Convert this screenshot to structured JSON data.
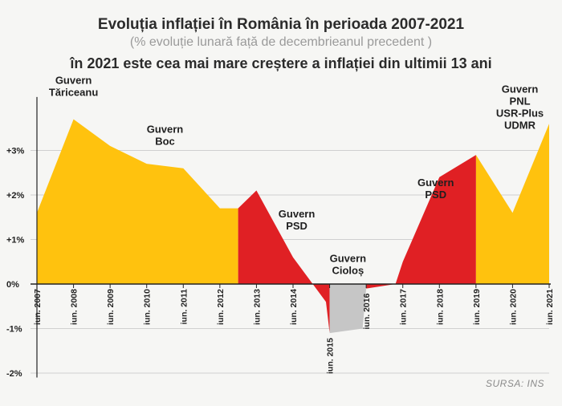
{
  "header": {
    "title": "Evoluția inflației în România în perioada 2007-2021",
    "subtitle": "(% evoluție lunară față de decembrieanul precedent )",
    "headline": "în 2021 este cea mai mare creștere a inflației din ultimii 13 ani"
  },
  "source": "SURSA: INS",
  "colors": {
    "yellow": "#ffc20e",
    "red": "#e02024",
    "gray": "#c6c6c6",
    "axis": "#222222",
    "grid": "#d0d0d0"
  },
  "chart_data": {
    "type": "area",
    "title": "Evoluția inflației în România în perioada 2007-2021",
    "xlabel": "",
    "ylabel": "",
    "ylim": [
      -2.1,
      4.2
    ],
    "y_ticks": [
      {
        "value": 3,
        "label": "+3%"
      },
      {
        "value": 2,
        "label": "+2%"
      },
      {
        "value": 1,
        "label": "+1%"
      },
      {
        "value": 0,
        "label": "0%"
      },
      {
        "value": -1,
        "label": "-1%"
      },
      {
        "value": -2,
        "label": "-2%"
      }
    ],
    "x_ticks": [
      "iun. 2007",
      "iun. 2008",
      "iun. 2009",
      "iun. 2010",
      "iun. 2011",
      "iun. 2012",
      "iun. 2013",
      "iun. 2014",
      "iun. 2015",
      "iun. 2016",
      "iun. 2017",
      "iun. 2018",
      "iun. 2019",
      "iun. 2020",
      "iun. 2021"
    ],
    "x": [
      2007.0,
      2008.0,
      2009.0,
      2010.0,
      2011.0,
      2012.0,
      2012.5,
      2013.0,
      2014.0,
      2014.9,
      2015.0,
      2015.9,
      2016.0,
      2016.8,
      2017.0,
      2018.0,
      2019.0,
      2020.0,
      2021.0
    ],
    "values": [
      1.6,
      3.7,
      3.1,
      2.7,
      2.6,
      1.7,
      1.7,
      2.1,
      0.6,
      -0.4,
      -1.1,
      -1.0,
      -0.1,
      0.0,
      0.5,
      2.4,
      2.9,
      1.6,
      3.6
    ],
    "segments": [
      {
        "name": "Guvern Tăriceanu / Guvern Boc",
        "color": "yellow",
        "from": 2007.0,
        "to": 2012.5
      },
      {
        "name": "Guvern PSD",
        "color": "red",
        "from": 2012.5,
        "to": 2015.0
      },
      {
        "name": "Guvern Cioloș",
        "color": "gray",
        "from": 2015.0,
        "to": 2016.0
      },
      {
        "name": "Guvern PSD",
        "color": "red",
        "from": 2016.0,
        "to": 2019.0
      },
      {
        "name": "Guvern PNL USR-Plus UDMR",
        "color": "yellow",
        "from": 2019.0,
        "to": 2021.0
      }
    ],
    "annotations": [
      {
        "lines": [
          "Guvern",
          "Tăriceanu"
        ],
        "x": 2008.0,
        "y": 4.5,
        "color": "dark"
      },
      {
        "lines": [
          "Guvern",
          "Boc"
        ],
        "x": 2010.5,
        "y": 3.4,
        "color": "dark"
      },
      {
        "lines": [
          "Guvern",
          "PSD"
        ],
        "x": 2014.1,
        "y": 1.5,
        "color": "dark"
      },
      {
        "lines": [
          "Guvern",
          "Cioloș"
        ],
        "x": 2015.5,
        "y": 0.5,
        "color": "dark"
      },
      {
        "lines": [
          "Guvern",
          "PSD"
        ],
        "x": 2017.9,
        "y": 2.2,
        "color": "dark"
      },
      {
        "lines": [
          "Guvern",
          "PNL",
          "USR-Plus",
          "UDMR"
        ],
        "x": 2020.2,
        "y": 4.3,
        "color": "dark"
      }
    ],
    "grid": true,
    "legend": "none"
  }
}
